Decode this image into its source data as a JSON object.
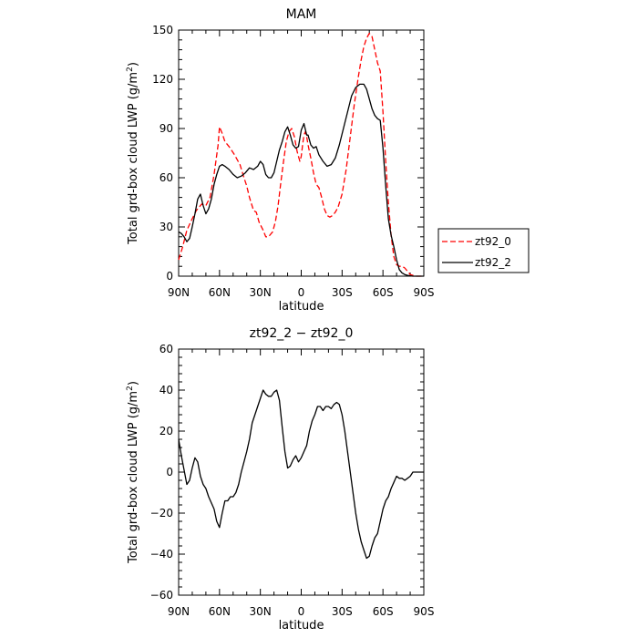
{
  "chart_data": [
    {
      "type": "line",
      "title": "MAM",
      "xlabel": "latitude",
      "ylabel": "Total grd-box cloud LWP (g/m²)",
      "xlim": [
        90,
        -90
      ],
      "ylim": [
        0,
        150
      ],
      "x_tick_values": [
        90,
        60,
        30,
        0,
        -30,
        -60,
        -90
      ],
      "x_tick_labels": [
        "90N",
        "60N",
        "30N",
        "0",
        "30S",
        "60S",
        "90S"
      ],
      "y_ticks": [
        0,
        30,
        60,
        90,
        120,
        150
      ],
      "legend": {
        "placement": "right"
      },
      "series": [
        {
          "name": "zt92_0",
          "color": "#ff0000",
          "dash": "dashed",
          "x": [
            90,
            87,
            84,
            80,
            77,
            73,
            70,
            67,
            64,
            61,
            60,
            58,
            56,
            53,
            49,
            45,
            42,
            40,
            38,
            35,
            33,
            31,
            28,
            26,
            24,
            21,
            19,
            17,
            15,
            13,
            11,
            9,
            7,
            5,
            3,
            1,
            0,
            -1,
            -2,
            -3,
            -4,
            -5,
            -7,
            -9,
            -11,
            -13,
            -15,
            -17,
            -19,
            -21,
            -23,
            -25,
            -27,
            -30,
            -33,
            -36,
            -39,
            -42,
            -44,
            -46,
            -48,
            -50,
            -52,
            -54,
            -56,
            -58,
            -60,
            -62,
            -64,
            -66,
            -68,
            -70,
            -72,
            -74,
            -76,
            -78,
            -80,
            -82,
            -84,
            -86,
            -88,
            -90
          ],
          "y": [
            10,
            18,
            28,
            35,
            40,
            44,
            43,
            48,
            62,
            80,
            91,
            87,
            82,
            79,
            74,
            68,
            60,
            55,
            48,
            40,
            39,
            33,
            28,
            24,
            24,
            27,
            33,
            43,
            57,
            70,
            82,
            88,
            90,
            85,
            76,
            70,
            73,
            80,
            86,
            88,
            85,
            80,
            72,
            63,
            56,
            54,
            48,
            41,
            37,
            36,
            37,
            39,
            42,
            50,
            65,
            85,
            105,
            122,
            132,
            140,
            145,
            148,
            146,
            138,
            130,
            125,
            100,
            70,
            45,
            25,
            12,
            7,
            6,
            6,
            5,
            3,
            1,
            0.5,
            0,
            0,
            0,
            0
          ]
        },
        {
          "name": "zt92_2",
          "color": "#000000",
          "dash": "solid",
          "x": [
            90,
            88,
            86,
            84,
            82,
            80,
            78,
            76,
            74,
            72,
            70,
            68,
            66,
            64,
            62,
            60,
            58,
            56,
            53,
            50,
            47,
            44,
            41,
            38,
            35,
            32,
            30,
            28,
            26,
            24,
            22,
            20,
            18,
            16,
            14,
            12,
            10,
            8,
            6,
            4,
            2,
            0,
            -2,
            -4,
            -5,
            -7,
            -9,
            -11,
            -13,
            -16,
            -19,
            -22,
            -25,
            -28,
            -31,
            -34,
            -37,
            -40,
            -43,
            -46,
            -48,
            -50,
            -52,
            -54,
            -56,
            -58,
            -60,
            -62,
            -64,
            -66,
            -68,
            -70,
            -72,
            -74,
            -76,
            -78,
            -80,
            -82,
            -84,
            -86,
            -88,
            -90
          ],
          "y": [
            27,
            26,
            24,
            21,
            23,
            30,
            38,
            47,
            50,
            43,
            38,
            41,
            47,
            56,
            62,
            67,
            68,
            67,
            65,
            62,
            60,
            61,
            63,
            66,
            65,
            67,
            70,
            68,
            62,
            60,
            60,
            63,
            70,
            77,
            82,
            88,
            91,
            86,
            80,
            78,
            79,
            89,
            93,
            86,
            86,
            80,
            78,
            79,
            74,
            70,
            67,
            68,
            72,
            80,
            90,
            100,
            110,
            115,
            117,
            117,
            114,
            108,
            102,
            98,
            96,
            95,
            78,
            55,
            35,
            25,
            18,
            10,
            4,
            2,
            1,
            0.5,
            0.2,
            0,
            0,
            0,
            0,
            0
          ]
        }
      ]
    },
    {
      "type": "line",
      "title": "zt92_2 − zt92_0",
      "xlabel": "latitude",
      "ylabel": "Total grd-box cloud LWP (g/m²)",
      "xlim": [
        90,
        -90
      ],
      "ylim": [
        -60,
        60
      ],
      "x_tick_values": [
        90,
        60,
        30,
        0,
        -30,
        -60,
        -90
      ],
      "x_tick_labels": [
        "90N",
        "60N",
        "30N",
        "0",
        "30S",
        "60S",
        "90S"
      ],
      "y_ticks": [
        -60,
        -40,
        -20,
        0,
        20,
        40,
        60
      ],
      "series": [
        {
          "color": "#000000",
          "dash": "solid",
          "x": [
            90,
            88,
            86,
            84,
            82,
            80,
            78,
            76,
            74,
            72,
            70,
            68,
            66,
            64,
            62,
            60,
            58,
            56,
            54,
            52,
            50,
            48,
            46,
            44,
            42,
            40,
            38,
            36,
            34,
            32,
            30,
            28,
            26,
            24,
            22,
            20,
            18,
            16,
            14,
            12,
            10,
            8,
            6,
            4,
            2,
            0,
            -2,
            -4,
            -6,
            -8,
            -10,
            -12,
            -14,
            -16,
            -18,
            -20,
            -22,
            -24,
            -26,
            -28,
            -30,
            -32,
            -34,
            -36,
            -38,
            -40,
            -42,
            -44,
            -46,
            -48,
            -50,
            -52,
            -54,
            -56,
            -58,
            -60,
            -62,
            -64,
            -66,
            -68,
            -70,
            -72,
            -74,
            -76,
            -78,
            -80,
            -82,
            -84,
            -86,
            -88,
            -90
          ],
          "y": [
            16,
            8,
            1,
            -6,
            -4,
            2,
            7,
            5,
            -2,
            -6,
            -8,
            -12,
            -15,
            -18,
            -24,
            -27,
            -20,
            -14,
            -14,
            -12,
            -12,
            -10,
            -6,
            0,
            5,
            10,
            16,
            24,
            28,
            32,
            36,
            40,
            38,
            37,
            37,
            39,
            40,
            35,
            22,
            10,
            2,
            3,
            6,
            8,
            5,
            7,
            10,
            13,
            20,
            25,
            28,
            32,
            32,
            30,
            32,
            32,
            31,
            33,
            34,
            33,
            28,
            20,
            10,
            0,
            -10,
            -20,
            -28,
            -34,
            -38,
            -42,
            -41,
            -36,
            -32,
            -30,
            -24,
            -18,
            -14,
            -12,
            -8,
            -5,
            -2,
            -3,
            -3,
            -4,
            -3,
            -2,
            0,
            0,
            0,
            0,
            0
          ]
        }
      ]
    }
  ]
}
